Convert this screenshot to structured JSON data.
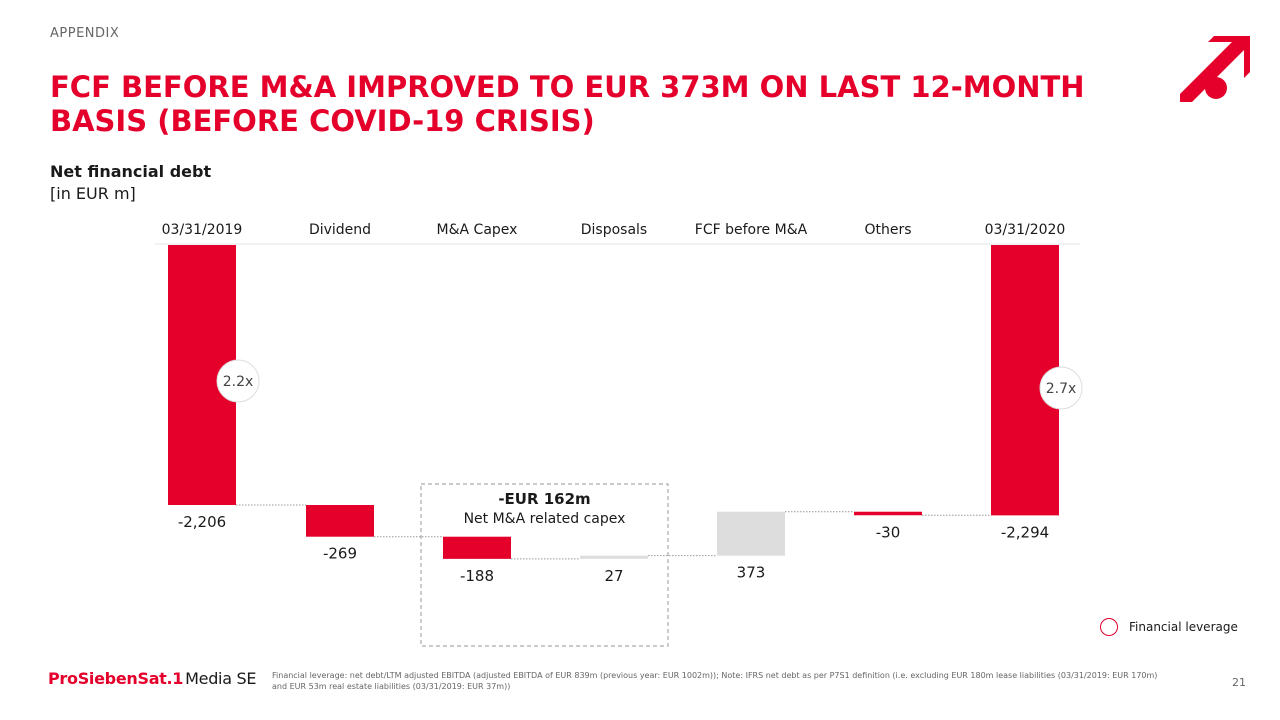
{
  "section_label": "APPENDIX",
  "title": "FCF BEFORE M&A IMPROVED TO EUR 373M ON LAST 12-MONTH BASIS (BEFORE COVID-19 CRISIS)",
  "subtitle": "Net financial debt",
  "unit": "[in EUR m]",
  "colors": {
    "accent": "#e4002b",
    "positive": "#dddddd",
    "text": "#1a1a1a",
    "muted": "#666666"
  },
  "logo_icon": "prosiebensat1-logo-icon",
  "chart_data": {
    "type": "bar",
    "subtype": "waterfall",
    "categories": [
      "03/31/2019",
      "Dividend",
      "M&A Capex",
      "Disposals",
      "FCF before M&A",
      "Others",
      "03/31/2020"
    ],
    "values": [
      -2206,
      -269,
      -188,
      27,
      373,
      -30,
      -2294
    ],
    "value_labels": [
      "-2,206",
      "-269",
      "-188",
      "27",
      "373",
      "-30",
      "-2,294"
    ],
    "kinds": [
      "total",
      "delta",
      "delta",
      "delta",
      "delta",
      "delta",
      "total"
    ],
    "ylim": [
      -2700,
      0
    ],
    "grid": false,
    "title": "",
    "xlabel": "",
    "ylabel": "",
    "leverage": [
      {
        "index": 0,
        "label": "2.2x",
        "value": 2.2
      },
      {
        "index": 6,
        "label": "2.7x",
        "value": 2.7
      }
    ],
    "annotation": {
      "amount": "-EUR 162m",
      "text": "Net M&A related capex",
      "from_index": 2,
      "to_index": 3
    }
  },
  "legend": {
    "label": "Financial leverage"
  },
  "footer": {
    "brand": "ProSiebenSat.1",
    "brand_suffix": "Media SE",
    "footnote": "Financial leverage: net debt/LTM adjusted EBITDA (adjusted EBITDA of EUR 839m (previous year: EUR 1002m)); Note: IFRS net debt as per P7S1 definition (i.e. excluding EUR 180m lease liabilities (03/31/2019: EUR 170m) and EUR 53m real estate liabilities (03/31/2019: EUR 37m))",
    "page_number": "21"
  }
}
